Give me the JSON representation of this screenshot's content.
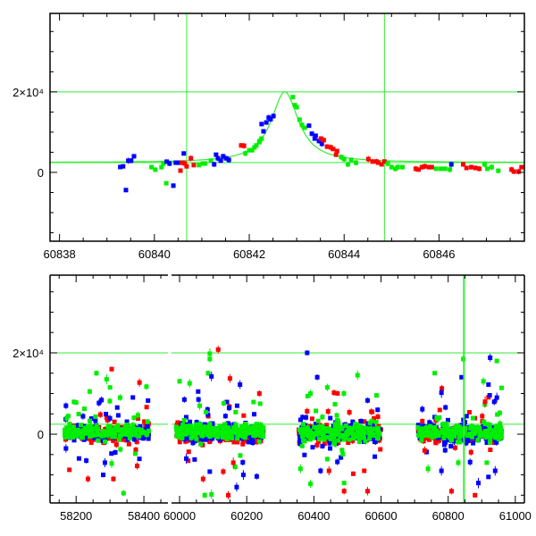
{
  "colors": {
    "red": "#ff0000",
    "green": "#00ee00",
    "blue": "#0000ff",
    "guide": "#33ee33",
    "axis": "#000000"
  },
  "chart_data": [
    {
      "type": "scatter",
      "name": "zoom-panel",
      "xlim": [
        60837.8,
        60847.8
      ],
      "ylim": [
        -17100,
        39500
      ],
      "xticks": [
        60838,
        60840,
        60842,
        60844,
        60846
      ],
      "xtick_labels": [
        "60838",
        "60840",
        "60842",
        "60844",
        "60846"
      ],
      "yticks": [
        0,
        20000
      ],
      "ytick_labels": [
        "0",
        "2×10⁴"
      ],
      "hlines": [
        20000,
        2440
      ],
      "vlines": [
        60840.68,
        60844.85
      ],
      "model": {
        "baseline": 2440,
        "peak": 20000,
        "t0": 60842.75,
        "width": 0.35
      },
      "points": [
        [
          60839.28,
          1330,
          "b"
        ],
        [
          60839.34,
          1500,
          "b"
        ],
        [
          60839.45,
          2900,
          "b"
        ],
        [
          60839.51,
          2900,
          "b"
        ],
        [
          60839.57,
          4000,
          "b"
        ],
        [
          60839.4,
          -4400,
          "b"
        ],
        [
          60839.94,
          1300,
          "g"
        ],
        [
          60840.02,
          670,
          "g"
        ],
        [
          60840.15,
          1300,
          "g"
        ],
        [
          60840.19,
          2200,
          "g"
        ],
        [
          60840.25,
          -2700,
          "g"
        ],
        [
          60840.26,
          2670,
          "b"
        ],
        [
          60840.32,
          2200,
          "b"
        ],
        [
          60840.4,
          -3300,
          "b"
        ],
        [
          60840.45,
          2400,
          "b"
        ],
        [
          60840.51,
          2400,
          "b"
        ],
        [
          60840.62,
          4700,
          "b"
        ],
        [
          60840.55,
          440,
          "r"
        ],
        [
          60840.58,
          2400,
          "r"
        ],
        [
          60840.64,
          2200,
          "r"
        ],
        [
          60840.68,
          1500,
          "r"
        ],
        [
          60840.77,
          3500,
          "r"
        ],
        [
          60840.83,
          1800,
          "r"
        ],
        [
          60840.94,
          1800,
          "g"
        ],
        [
          60841.02,
          2200,
          "g"
        ],
        [
          60841.07,
          2200,
          "g"
        ],
        [
          60841.19,
          2900,
          "g"
        ],
        [
          60841.26,
          2000,
          "b"
        ],
        [
          60841.3,
          4400,
          "b"
        ],
        [
          60841.34,
          3500,
          "b"
        ],
        [
          60841.4,
          2900,
          "b"
        ],
        [
          60841.45,
          4000,
          "b"
        ],
        [
          60841.51,
          3500,
          "b"
        ],
        [
          60841.57,
          3100,
          "b"
        ],
        [
          60841.83,
          6700,
          "r"
        ],
        [
          60841.89,
          6600,
          "r"
        ],
        [
          60841.92,
          4700,
          "g"
        ],
        [
          60842.0,
          5500,
          "g"
        ],
        [
          60842.06,
          5500,
          "g"
        ],
        [
          60842.11,
          6200,
          "g"
        ],
        [
          60842.15,
          6700,
          "g"
        ],
        [
          60842.21,
          7500,
          "g"
        ],
        [
          60842.26,
          8400,
          "g"
        ],
        [
          60842.22,
          7800,
          "g"
        ],
        [
          60842.26,
          12000,
          "b"
        ],
        [
          60842.3,
          10200,
          "b"
        ],
        [
          60842.36,
          12400,
          "b"
        ],
        [
          60842.41,
          13600,
          "b"
        ],
        [
          60842.45,
          13200,
          "b"
        ],
        [
          60842.51,
          14000,
          "b"
        ],
        [
          60842.92,
          18700,
          "g"
        ],
        [
          60842.96,
          16700,
          "g"
        ],
        [
          60843.0,
          16200,
          "g"
        ],
        [
          60843.06,
          13100,
          "g"
        ],
        [
          60843.11,
          11800,
          "g"
        ],
        [
          60843.17,
          11100,
          "g"
        ],
        [
          60843.26,
          11600,
          "b"
        ],
        [
          60843.32,
          9600,
          "b"
        ],
        [
          60843.4,
          9100,
          "b"
        ],
        [
          60843.38,
          8400,
          "b"
        ],
        [
          60843.47,
          7800,
          "b"
        ],
        [
          60843.53,
          7100,
          "b"
        ],
        [
          60843.51,
          8400,
          "r"
        ],
        [
          60843.57,
          8000,
          "r"
        ],
        [
          60843.64,
          6400,
          "r"
        ],
        [
          60843.72,
          6200,
          "r"
        ],
        [
          60843.77,
          5800,
          "r"
        ],
        [
          60843.85,
          5300,
          "r"
        ],
        [
          60843.83,
          4400,
          "r"
        ],
        [
          60843.94,
          3800,
          "g"
        ],
        [
          60844.0,
          3300,
          "g"
        ],
        [
          60844.08,
          2000,
          "g"
        ],
        [
          60844.15,
          3100,
          "g"
        ],
        [
          60844.25,
          2400,
          "g"
        ],
        [
          60844.51,
          3300,
          "r"
        ],
        [
          60844.6,
          2700,
          "r"
        ],
        [
          60844.68,
          2700,
          "r"
        ],
        [
          60844.72,
          2400,
          "r"
        ],
        [
          60844.79,
          2000,
          "r"
        ],
        [
          60844.85,
          2700,
          "r"
        ],
        [
          60844.92,
          2200,
          "g"
        ],
        [
          60845.0,
          1300,
          "g"
        ],
        [
          60845.08,
          900,
          "g"
        ],
        [
          60845.13,
          1300,
          "g"
        ],
        [
          60845.23,
          1300,
          "g"
        ],
        [
          60845.51,
          900,
          "r"
        ],
        [
          60845.57,
          700,
          "r"
        ],
        [
          60845.64,
          1300,
          "r"
        ],
        [
          60845.7,
          1500,
          "r"
        ],
        [
          60845.79,
          1300,
          "r"
        ],
        [
          60845.85,
          1300,
          "r"
        ],
        [
          60845.94,
          900,
          "g"
        ],
        [
          60846.04,
          900,
          "g"
        ],
        [
          60846.13,
          900,
          "g"
        ],
        [
          60846.23,
          700,
          "g"
        ],
        [
          60846.26,
          2000,
          "b"
        ],
        [
          60846.51,
          2000,
          "r"
        ],
        [
          60846.58,
          1100,
          "r"
        ],
        [
          60846.68,
          1300,
          "r"
        ],
        [
          60846.77,
          1100,
          "r"
        ],
        [
          60846.85,
          900,
          "r"
        ],
        [
          60846.96,
          2000,
          "g"
        ],
        [
          60847.02,
          900,
          "g"
        ],
        [
          60847.11,
          1300,
          "g"
        ],
        [
          60847.25,
          400,
          "g"
        ],
        [
          60847.53,
          700,
          "r"
        ],
        [
          60847.58,
          200,
          "r"
        ],
        [
          60847.68,
          200,
          "r"
        ],
        [
          60847.74,
          1300,
          "r"
        ]
      ]
    },
    {
      "type": "scatter",
      "name": "full-light-curve",
      "broken_x_axis": true,
      "segments": [
        {
          "xlim": [
            58123,
            58471
          ],
          "xticks": [
            58200,
            58400
          ],
          "xtick_labels": [
            "58200",
            "58400"
          ]
        },
        {
          "xlim": [
            59976,
            61027
          ],
          "xticks": [
            60000,
            60200,
            60400,
            60600,
            60800,
            61000
          ],
          "xtick_labels": [
            "60000",
            "60200",
            "60400",
            "60600",
            "60800",
            "61000"
          ]
        }
      ],
      "ylim": [
        -16900,
        39100
      ],
      "yticks": [
        0,
        20000
      ],
      "ytick_labels": [
        "0",
        "2×10⁴"
      ],
      "hlines": [
        20000,
        2440
      ],
      "vlines": [
        60847
      ],
      "seasons": [
        {
          "start": 58165,
          "end": 58415,
          "n_per_band": 170,
          "scatter": 900
        },
        {
          "start": 59990,
          "end": 60250,
          "n_per_band": 190,
          "scatter": 1000
        },
        {
          "start": 60355,
          "end": 60600,
          "n_per_band": 190,
          "scatter": 950
        },
        {
          "start": 60710,
          "end": 60960,
          "n_per_band": 190,
          "scatter": 900
        }
      ],
      "outliers": [
        [
          58260,
          15000,
          "g"
        ],
        [
          58290,
          13500,
          "g"
        ],
        [
          58305,
          16000,
          "r"
        ],
        [
          58387,
          12700,
          "r"
        ],
        [
          58240,
          10500,
          "g"
        ],
        [
          58300,
          11500,
          "g"
        ],
        [
          58330,
          9000,
          "g"
        ],
        [
          58200,
          7800,
          "g"
        ],
        [
          58275,
          8400,
          "b"
        ],
        [
          58170,
          7000,
          "b"
        ],
        [
          58235,
          -11000,
          "r"
        ],
        [
          58280,
          -10000,
          "b"
        ],
        [
          58310,
          -11000,
          "r"
        ],
        [
          58285,
          -7000,
          "b"
        ],
        [
          58305,
          -7200,
          "g"
        ],
        [
          58380,
          -7800,
          "r"
        ],
        [
          58340,
          -14500,
          "g"
        ],
        [
          58230,
          -6500,
          "b"
        ],
        [
          58170,
          -3500,
          "b"
        ],
        [
          60090,
          19800,
          "g"
        ],
        [
          60090,
          18500,
          "g"
        ],
        [
          60115,
          20800,
          "r"
        ],
        [
          60085,
          15000,
          "g"
        ],
        [
          60000,
          13000,
          "g"
        ],
        [
          60030,
          12500,
          "g"
        ],
        [
          60095,
          14200,
          "b"
        ],
        [
          60150,
          13700,
          "r"
        ],
        [
          60180,
          12200,
          "b"
        ],
        [
          60240,
          7500,
          "g"
        ],
        [
          60060,
          7000,
          "g"
        ],
        [
          60070,
          -11000,
          "r"
        ],
        [
          60090,
          -9200,
          "b"
        ],
        [
          60130,
          -9200,
          "r"
        ],
        [
          60145,
          -15000,
          "r"
        ],
        [
          60170,
          -13000,
          "b"
        ],
        [
          60190,
          -10000,
          "b"
        ],
        [
          60075,
          -15000,
          "g"
        ],
        [
          60095,
          -14800,
          "g"
        ],
        [
          60160,
          -7000,
          "r"
        ],
        [
          60020,
          -6000,
          "b"
        ],
        [
          60380,
          20000,
          "b"
        ],
        [
          60410,
          14000,
          "b"
        ],
        [
          60530,
          14500,
          "g"
        ],
        [
          60390,
          10000,
          "g"
        ],
        [
          60440,
          11500,
          "g"
        ],
        [
          60460,
          10200,
          "r"
        ],
        [
          60560,
          8300,
          "b"
        ],
        [
          60590,
          6000,
          "b"
        ],
        [
          60390,
          -12200,
          "g"
        ],
        [
          60420,
          -9000,
          "b"
        ],
        [
          60445,
          -9000,
          "r"
        ],
        [
          60490,
          -12000,
          "g"
        ],
        [
          60490,
          -14000,
          "r"
        ],
        [
          60560,
          -14000,
          "r"
        ],
        [
          60550,
          -9000,
          "r"
        ],
        [
          60360,
          -8500,
          "g"
        ],
        [
          60470,
          -6800,
          "b"
        ],
        [
          60760,
          15000,
          "g"
        ],
        [
          60780,
          10200,
          "b"
        ],
        [
          60845,
          18500,
          "g"
        ],
        [
          60840,
          14000,
          "b"
        ],
        [
          60925,
          18800,
          "b"
        ],
        [
          60945,
          18000,
          "g"
        ],
        [
          60905,
          13000,
          "g"
        ],
        [
          60920,
          12200,
          "b"
        ],
        [
          60945,
          9000,
          "b"
        ],
        [
          60910,
          8000,
          "r"
        ],
        [
          60780,
          -9000,
          "b"
        ],
        [
          60810,
          -14000,
          "r"
        ],
        [
          60830,
          -7000,
          "g"
        ],
        [
          60880,
          -15000,
          "r"
        ],
        [
          60890,
          -12000,
          "b"
        ],
        [
          60920,
          -10500,
          "b"
        ],
        [
          60940,
          -9000,
          "b"
        ],
        [
          60730,
          -4000,
          "r"
        ],
        [
          60740,
          -8500,
          "g"
        ],
        [
          60915,
          -7000,
          "g"
        ]
      ]
    }
  ]
}
